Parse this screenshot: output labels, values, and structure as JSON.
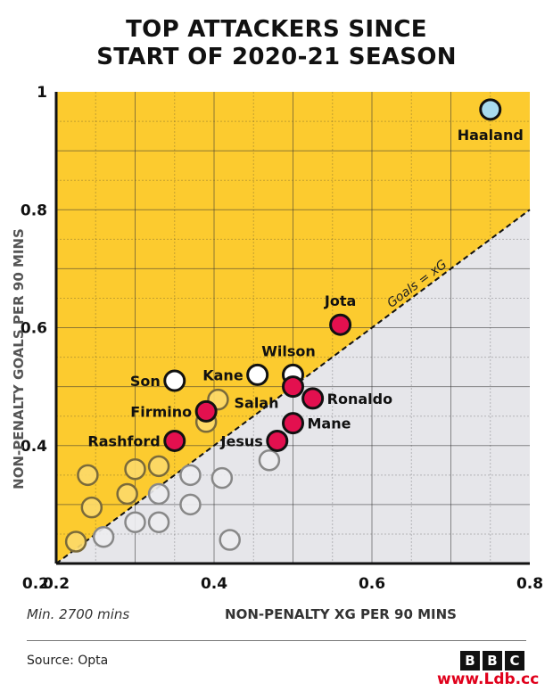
{
  "title_lines": [
    "TOP ATTACKERS SINCE",
    "START OF 2020-21 SEASON"
  ],
  "chart_data": {
    "type": "scatter",
    "xlabel": "NON-PENALTY XG PER 90 MINS",
    "ylabel": "NON-PENALTY GOALS PER 90 MINS",
    "xlim": [
      0.2,
      0.8
    ],
    "ylim": [
      0.2,
      1.0
    ],
    "x_ticks": [
      "0.2",
      "0.4",
      "0.6",
      "0.8"
    ],
    "y_ticks": [
      "0.4",
      "0.6",
      "0.8",
      "1"
    ],
    "grid": true,
    "note": "Min. 2700 mins",
    "reference_line_label": "Goals = xG",
    "colors": {
      "above_region": "#fccb2f",
      "below_region": "#e6e6ea",
      "highlight": "#e3104f",
      "haaland": "#a9dcee",
      "white": "#ffffff"
    },
    "labeled_points": [
      {
        "name": "Haaland",
        "x": 0.75,
        "y": 0.97,
        "style": "haaland"
      },
      {
        "name": "Jota",
        "x": 0.56,
        "y": 0.605,
        "style": "highlight"
      },
      {
        "name": "Wilson",
        "x": 0.5,
        "y": 0.52,
        "style": "white"
      },
      {
        "name": "Kane",
        "x": 0.455,
        "y": 0.52,
        "style": "white"
      },
      {
        "name": "Son",
        "x": 0.35,
        "y": 0.51,
        "style": "white"
      },
      {
        "name": "Salah",
        "x": 0.5,
        "y": 0.5,
        "style": "highlight"
      },
      {
        "name": "Ronaldo",
        "x": 0.525,
        "y": 0.48,
        "style": "highlight"
      },
      {
        "name": "Firmino",
        "x": 0.39,
        "y": 0.458,
        "style": "highlight"
      },
      {
        "name": "Mane",
        "x": 0.5,
        "y": 0.438,
        "style": "highlight"
      },
      {
        "name": "Jesus",
        "x": 0.48,
        "y": 0.408,
        "style": "highlight"
      },
      {
        "name": "Rashford",
        "x": 0.35,
        "y": 0.408,
        "style": "highlight"
      }
    ],
    "unlabeled_points": [
      {
        "x": 0.405,
        "y": 0.478
      },
      {
        "x": 0.39,
        "y": 0.44
      },
      {
        "x": 0.33,
        "y": 0.365
      },
      {
        "x": 0.3,
        "y": 0.36
      },
      {
        "x": 0.24,
        "y": 0.35
      },
      {
        "x": 0.29,
        "y": 0.318
      },
      {
        "x": 0.245,
        "y": 0.295
      },
      {
        "x": 0.225,
        "y": 0.237
      },
      {
        "x": 0.26,
        "y": 0.245
      },
      {
        "x": 0.3,
        "y": 0.27
      },
      {
        "x": 0.33,
        "y": 0.27
      },
      {
        "x": 0.33,
        "y": 0.318
      },
      {
        "x": 0.37,
        "y": 0.35
      },
      {
        "x": 0.37,
        "y": 0.3
      },
      {
        "x": 0.41,
        "y": 0.345
      },
      {
        "x": 0.42,
        "y": 0.24
      },
      {
        "x": 0.47,
        "y": 0.375
      }
    ]
  },
  "source": "Source: Opta",
  "logo_letters": [
    "B",
    "B",
    "C"
  ],
  "watermark": "www.Ldb.cc"
}
